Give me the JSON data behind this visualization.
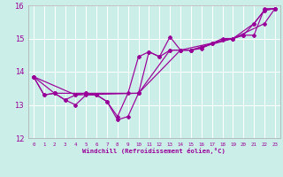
{
  "xlabel": "Windchill (Refroidissement éolien,°C)",
  "bg_color": "#cceee8",
  "grid_color": "#ffffff",
  "line_color": "#990099",
  "xlim": [
    -0.5,
    23.5
  ],
  "ylim": [
    12,
    16
  ],
  "xticks": [
    0,
    1,
    2,
    3,
    4,
    5,
    6,
    7,
    8,
    9,
    10,
    11,
    12,
    13,
    14,
    15,
    16,
    17,
    18,
    19,
    20,
    21,
    22,
    23
  ],
  "xtick_labels": [
    "0",
    "1",
    "2",
    "3",
    "4",
    "5",
    "6",
    "7",
    "8",
    "9",
    "10",
    "11",
    "12",
    "13",
    "14",
    "15",
    "16",
    "17",
    "18",
    "19",
    "20",
    "21",
    "22",
    "23"
  ],
  "yticks": [
    12,
    13,
    14,
    15,
    16
  ],
  "line1_x": [
    0,
    1,
    2,
    3,
    4,
    5,
    6,
    7,
    8,
    9,
    10,
    11,
    12,
    13,
    14,
    15,
    16,
    17,
    18,
    19,
    20,
    21,
    22,
    23
  ],
  "line1_y": [
    13.85,
    13.3,
    13.35,
    13.15,
    13.0,
    13.3,
    13.3,
    13.1,
    12.55,
    12.65,
    13.35,
    14.6,
    14.45,
    15.05,
    14.65,
    14.65,
    14.75,
    14.85,
    14.95,
    15.0,
    15.1,
    15.45,
    15.85,
    15.9
  ],
  "line2_x": [
    0,
    1,
    2,
    3,
    4,
    5,
    6,
    7,
    8,
    9,
    10,
    11,
    12,
    13,
    14,
    15,
    16,
    17,
    18,
    19,
    20,
    21,
    22,
    23
  ],
  "line2_y": [
    13.85,
    13.3,
    13.35,
    13.15,
    13.3,
    13.35,
    13.3,
    13.1,
    12.65,
    13.35,
    14.45,
    14.6,
    14.45,
    14.65,
    14.65,
    14.65,
    14.7,
    14.85,
    15.0,
    15.0,
    15.1,
    15.1,
    15.9,
    15.9
  ],
  "line3_x": [
    0,
    2,
    5,
    10,
    13,
    15,
    19,
    22,
    23
  ],
  "line3_y": [
    13.85,
    13.35,
    13.35,
    13.35,
    14.65,
    14.65,
    15.0,
    15.45,
    15.9
  ],
  "line4_x": [
    0,
    4,
    10,
    14,
    19,
    21,
    22,
    23
  ],
  "line4_y": [
    13.85,
    13.3,
    13.35,
    14.65,
    15.0,
    15.45,
    15.85,
    15.9
  ]
}
